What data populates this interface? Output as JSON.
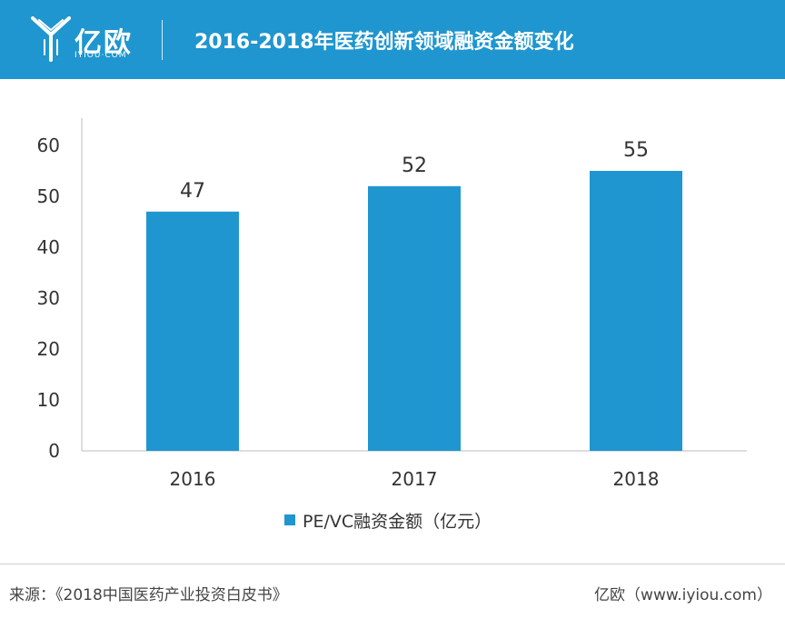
{
  "header": {
    "logo_cn": "亿欧",
    "logo_en": "IYIOU·COM",
    "title": "2016-2018年医药创新领域融资金额变化",
    "color": "#1f96cf"
  },
  "chart_data": {
    "type": "bar",
    "categories": [
      "2016",
      "2017",
      "2018"
    ],
    "series": [
      {
        "name": "PE/VC融资金额（亿元）",
        "values": [
          47,
          52,
          55
        ],
        "color": "#1f96cf"
      }
    ],
    "ylim": [
      0,
      60
    ],
    "yticks": [
      "0",
      "10",
      "20",
      "30",
      "40",
      "50",
      "60"
    ],
    "data_labels": [
      "47",
      "52",
      "55"
    ],
    "title": "",
    "xlabel": "",
    "ylabel": "",
    "grid": false,
    "legend": "bottom"
  },
  "footer": {
    "source": "来源：《2018中国医药产业投资白皮书》",
    "site": "亿欧（www.iyiou.com）"
  }
}
